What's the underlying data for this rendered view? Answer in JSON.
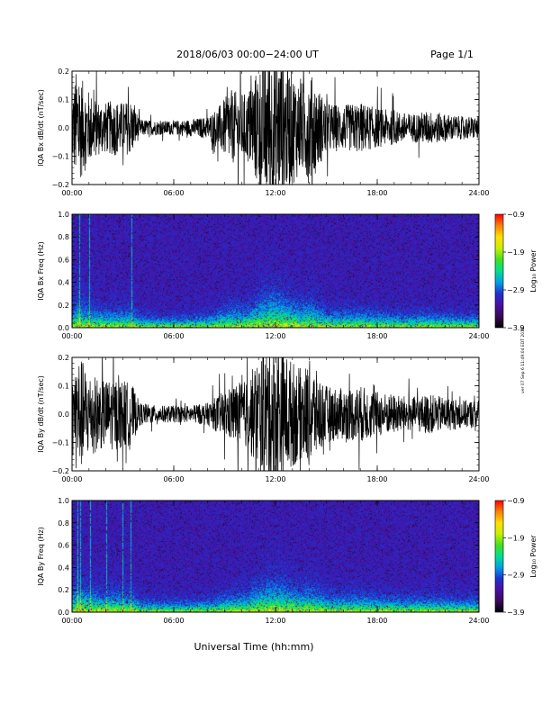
{
  "header": {
    "title": "2018/06/03  00:00−24:00 UT",
    "page": "Page 1/1"
  },
  "footer": {
    "xlabel": "Universal Time (hh:mm)",
    "stamp": "ver 07 Sep 6 11:49:04 EDT 2018"
  },
  "colors": {
    "trace": "#000000",
    "spectrogram_background": "#3a1480",
    "colormap": [
      "#000000",
      "#3a0a5a",
      "#4a10a0",
      "#2030d0",
      "#00a0e8",
      "#00e090",
      "#40e020",
      "#c8f000",
      "#ffe000",
      "#ff8000",
      "#ff0000"
    ]
  },
  "chart_data": [
    {
      "type": "line",
      "name": "bx-waveform",
      "ylabel": "IQA Bx dB/dt (nT/sec)",
      "xlim_hours": [
        0,
        24
      ],
      "ylim": [
        -0.2,
        0.2
      ],
      "yticks": [
        "0.2",
        "0.1",
        "0.0",
        "−0.1",
        "−0.2"
      ],
      "xticks": [
        "00:00",
        "06:00",
        "12:00",
        "18:00",
        "24:00"
      ],
      "activity_profile": {
        "hours": [
          0.0,
          0.3,
          0.5,
          1.0,
          1.5,
          2.0,
          2.5,
          3.0,
          3.5,
          4.0,
          5.0,
          6.0,
          7.0,
          8.0,
          8.7,
          9.2,
          9.7,
          10.3,
          11.0,
          11.5,
          12.0,
          12.5,
          13.0,
          13.5,
          14.0,
          15.0,
          16.0,
          17.0,
          18.0,
          19.0,
          20.0,
          21.0,
          22.0,
          23.0,
          24.0
        ],
        "amplitude": [
          0.12,
          0.22,
          0.18,
          0.13,
          0.1,
          0.09,
          0.1,
          0.09,
          0.1,
          0.03,
          0.025,
          0.025,
          0.03,
          0.04,
          0.08,
          0.12,
          0.13,
          0.12,
          0.22,
          0.26,
          0.28,
          0.24,
          0.2,
          0.16,
          0.2,
          0.09,
          0.08,
          0.09,
          0.07,
          0.06,
          0.05,
          0.06,
          0.05,
          0.04,
          0.04
        ]
      }
    },
    {
      "type": "heatmap",
      "name": "bx-spectrogram",
      "ylabel": "IQA Bx Freq (Hz)",
      "xlim_hours": [
        0,
        24
      ],
      "ylim": [
        0.0,
        1.0
      ],
      "yticks": [
        "1.0",
        "0.8",
        "0.6",
        "0.4",
        "0.2",
        "0.0"
      ],
      "xticks": [
        "00:00",
        "06:00",
        "12:00",
        "18:00",
        "24:00"
      ],
      "colorbar": {
        "label": "Log₁₀ Power",
        "range": [
          -3.9,
          -0.9
        ],
        "ticks": [
          "−0.9",
          "−1.9",
          "−2.9",
          "−3.9"
        ]
      }
    },
    {
      "type": "line",
      "name": "by-waveform",
      "ylabel": "IQA By dB/dt (nT/sec)",
      "xlim_hours": [
        0,
        24
      ],
      "ylim": [
        -0.2,
        0.2
      ],
      "yticks": [
        "0.2",
        "0.1",
        "0.0",
        "−0.1",
        "−0.2"
      ],
      "xticks": [
        "00:00",
        "06:00",
        "12:00",
        "18:00",
        "24:00"
      ],
      "activity_profile": {
        "hours": [
          0.0,
          0.3,
          0.5,
          1.0,
          1.5,
          2.0,
          2.5,
          3.0,
          3.5,
          4.0,
          5.0,
          6.0,
          7.0,
          8.0,
          8.7,
          9.2,
          9.7,
          10.3,
          11.0,
          11.5,
          12.0,
          12.5,
          13.0,
          13.5,
          14.0,
          15.0,
          16.0,
          17.0,
          18.0,
          19.0,
          20.0,
          21.0,
          22.0,
          23.0,
          24.0
        ],
        "amplitude": [
          0.14,
          0.22,
          0.2,
          0.15,
          0.13,
          0.12,
          0.13,
          0.12,
          0.11,
          0.04,
          0.03,
          0.03,
          0.03,
          0.04,
          0.07,
          0.09,
          0.11,
          0.12,
          0.2,
          0.24,
          0.26,
          0.22,
          0.19,
          0.16,
          0.19,
          0.1,
          0.09,
          0.1,
          0.08,
          0.07,
          0.06,
          0.07,
          0.06,
          0.05,
          0.05
        ]
      }
    },
    {
      "type": "heatmap",
      "name": "by-spectrogram",
      "ylabel": "IQA By Freq (Hz)",
      "xlim_hours": [
        0,
        24
      ],
      "ylim": [
        0.0,
        1.0
      ],
      "yticks": [
        "1.0",
        "0.8",
        "0.6",
        "0.4",
        "0.2",
        "0.0"
      ],
      "xticks": [
        "00:00",
        "06:00",
        "12:00",
        "18:00",
        "24:00"
      ],
      "colorbar": {
        "label": "Log₁₀ Power",
        "range": [
          -3.9,
          -0.9
        ],
        "ticks": [
          "−0.9",
          "−1.9",
          "−2.9",
          "−3.9"
        ]
      }
    }
  ]
}
